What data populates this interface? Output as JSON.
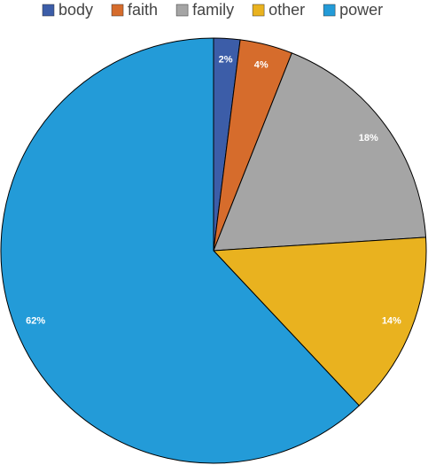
{
  "chart_data": {
    "type": "pie",
    "categories": [
      "body",
      "faith",
      "family",
      "other",
      "power"
    ],
    "values": [
      2,
      4,
      18,
      14,
      62
    ],
    "value_labels": [
      "2%",
      "4%",
      "18%",
      "14%",
      "62%"
    ],
    "colors": [
      "#3c5da8",
      "#d66c2c",
      "#a5a5a5",
      "#e9b21f",
      "#239bd8"
    ],
    "legend": "top"
  }
}
